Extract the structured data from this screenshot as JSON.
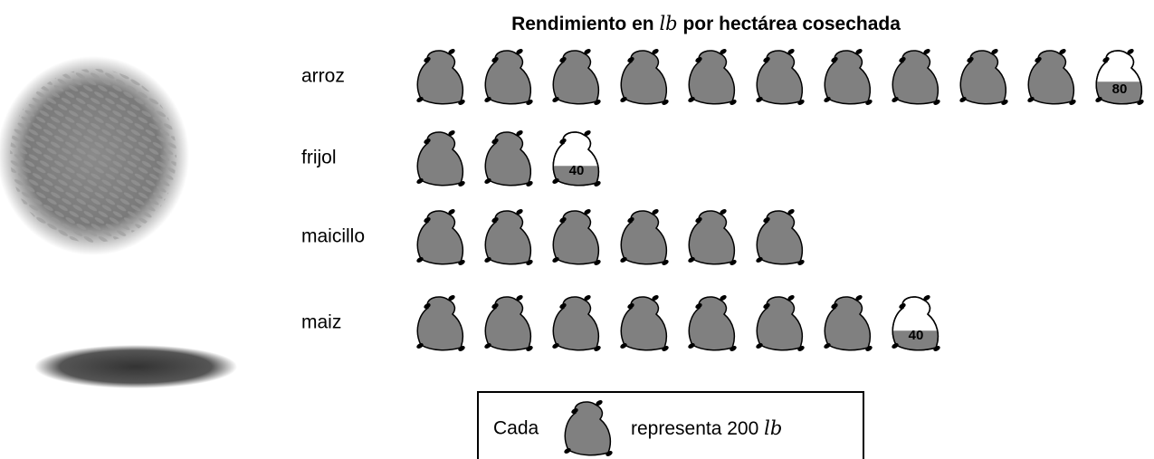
{
  "chart_data": {
    "type": "pictogram",
    "title": {
      "prefix": "Rendimiento en",
      "unit": "lb",
      "suffix": "por hectárea cosechada"
    },
    "categories": [
      "arroz",
      "frijol",
      "maicillo",
      "maiz"
    ],
    "values": [
      2080,
      440,
      1200,
      1440
    ],
    "partial_labels": [
      80,
      40,
      null,
      40
    ],
    "color": "#808080",
    "legend": {
      "prefix": "Cada",
      "suffix": "representa",
      "unit_value": 200,
      "unit_label": "lb"
    }
  }
}
